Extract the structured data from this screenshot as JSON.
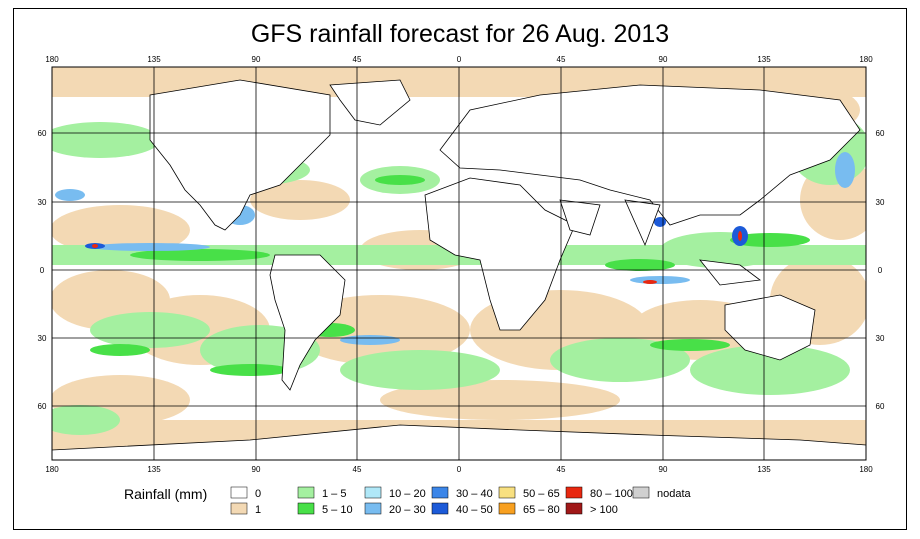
{
  "title": "GFS rainfall forecast for 26 Aug. 2013",
  "map": {
    "lon_top_labels": [
      "180",
      "135",
      "90",
      "45",
      "0",
      "45",
      "90",
      "135",
      "180"
    ],
    "lon_bottom_labels": [
      "180",
      "135",
      "90",
      "45",
      "0",
      "45",
      "90",
      "135",
      "180"
    ],
    "lat_left_labels": [
      "60",
      "30",
      "0",
      "30",
      "60"
    ],
    "lat_right_labels": [
      "60",
      "30",
      "0",
      "30",
      "60"
    ]
  },
  "legend": {
    "title": "Rainfall (mm)",
    "items": [
      {
        "label": "0",
        "color": "#ffffff"
      },
      {
        "label": "1",
        "color": "#f3d9b4"
      },
      {
        "label": "1 – 5",
        "color": "#a4f0a0"
      },
      {
        "label": "5 – 10",
        "color": "#48e048"
      },
      {
        "label": "10 – 20",
        "color": "#b0e8f8"
      },
      {
        "label": "20 – 30",
        "color": "#78bcf0"
      },
      {
        "label": "30 – 40",
        "color": "#3c86e8"
      },
      {
        "label": "40 – 50",
        "color": "#1c5ad8"
      },
      {
        "label": "50 – 65",
        "color": "#f8e080"
      },
      {
        "label": "65 – 80",
        "color": "#f8a020"
      },
      {
        "label": "80 – 100",
        "color": "#e82810"
      },
      {
        "label": "> 100",
        "color": "#a01818"
      },
      {
        "label": "nodata",
        "color": "#d0d0d0"
      }
    ]
  }
}
